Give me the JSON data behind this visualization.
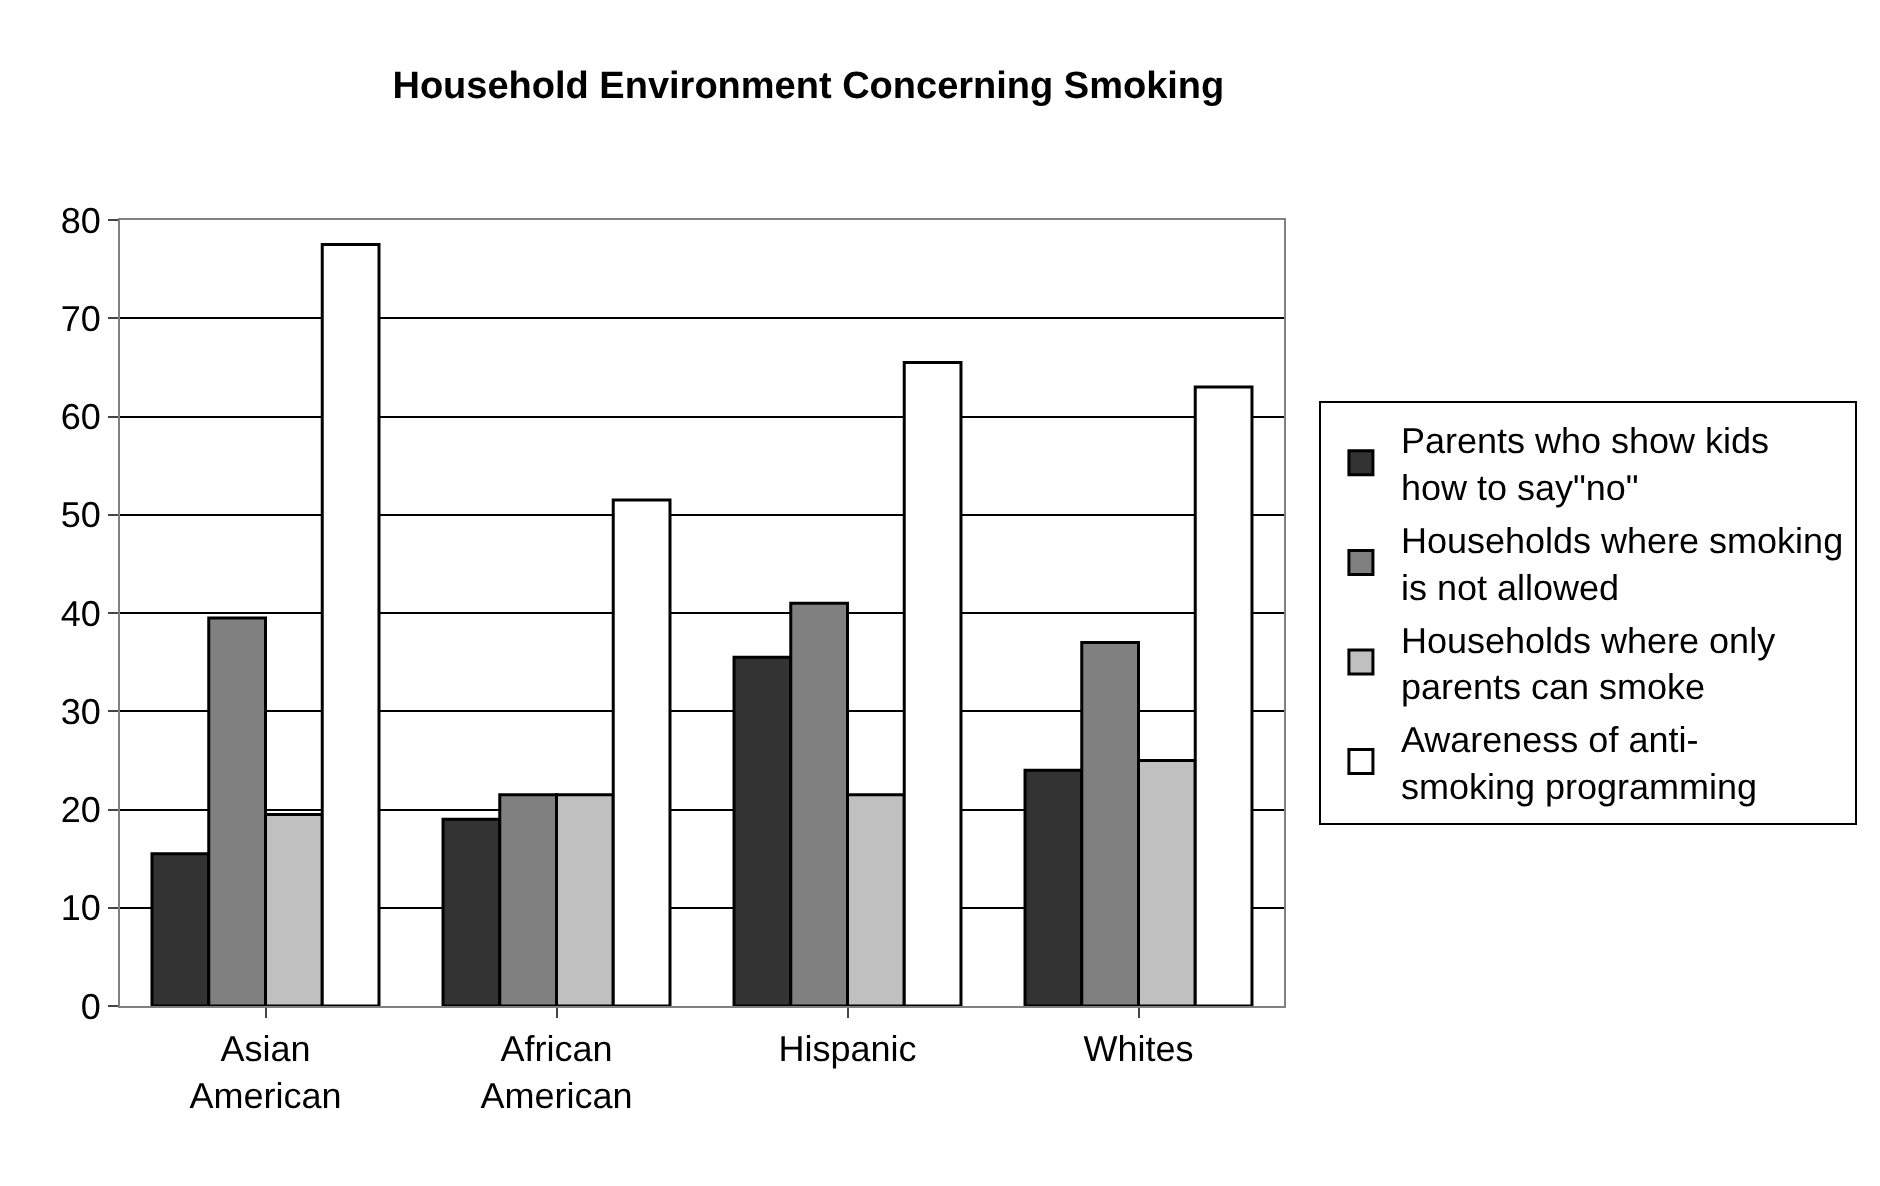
{
  "chart_data": {
    "type": "bar",
    "title": "Household Environment Concerning Smoking",
    "categories": [
      "Asian American",
      "African American",
      "Hispanic",
      "Whites"
    ],
    "series": [
      {
        "name": "Parents who show kids how to say\"no\"",
        "color": "#333333",
        "values": [
          15.5,
          19,
          35.5,
          24
        ]
      },
      {
        "name": "Households where smoking is not allowed",
        "color": "#808080",
        "values": [
          39.5,
          21.5,
          41,
          37
        ]
      },
      {
        "name": "Households where only parents can smoke",
        "color": "#c0c0c0",
        "values": [
          19.5,
          21.5,
          21.5,
          25
        ]
      },
      {
        "name": "Awareness of anti-smoking programming",
        "color": "#ffffff",
        "values": [
          77.5,
          51.5,
          65.5,
          63
        ]
      }
    ],
    "ylim": [
      0,
      80
    ],
    "yticks": [
      0,
      10,
      20,
      30,
      40,
      50,
      60,
      70,
      80
    ],
    "grid": "y",
    "legend": "right"
  }
}
